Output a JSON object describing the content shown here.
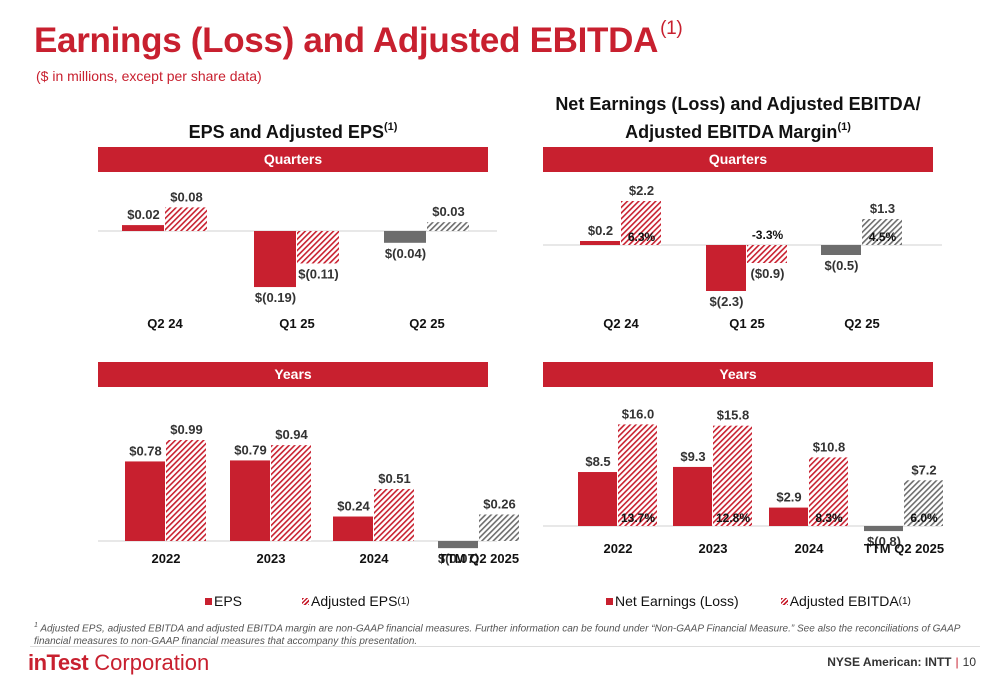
{
  "header": {
    "title": "Earnings (Loss) and Adjusted EBITDA",
    "title_note": "(1)",
    "subtitle": "($ in millions, except per share data)"
  },
  "left_panel": {
    "title": "EPS and Adjusted EPS",
    "title_note": "(1)",
    "band_quarters": "Quarters",
    "band_years": "Years",
    "legend": {
      "series1": "EPS",
      "series2": "Adjusted EPS",
      "series2_note": "(1)"
    }
  },
  "right_panel": {
    "title_line1": "Net Earnings (Loss) and Adjusted EBITDA/",
    "title_line2": "Adjusted EBITDA Margin",
    "title_note": "(1)",
    "band_quarters": "Quarters",
    "band_years": "Years",
    "legend": {
      "series1": "Net Earnings (Loss)",
      "series2": "Adjusted EBITDA",
      "series2_note": "(1)"
    }
  },
  "colors": {
    "primary": "#c8202f",
    "negative": "#6d6d6d"
  },
  "chart_data": [
    {
      "id": "eps_quarters",
      "type": "bar",
      "categories": [
        "Q2 24",
        "Q1 25",
        "Q2 25"
      ],
      "series": [
        {
          "name": "EPS",
          "values": [
            0.02,
            -0.19,
            -0.04
          ],
          "labels": [
            "$0.02",
            "$(0.19)",
            "$(0.04)"
          ]
        },
        {
          "name": "Adjusted EPS",
          "values": [
            0.08,
            -0.11,
            0.03
          ],
          "labels": [
            "$0.08",
            "$(0.11)",
            "$0.03"
          ]
        }
      ]
    },
    {
      "id": "ebitda_quarters",
      "type": "bar",
      "categories": [
        "Q2 24",
        "Q1 25",
        "Q2 25"
      ],
      "series": [
        {
          "name": "Net Earnings (Loss)",
          "values": [
            0.2,
            -2.3,
            -0.5
          ],
          "labels": [
            "$0.2",
            "$(2.3)",
            "$(0.5)"
          ]
        },
        {
          "name": "Adjusted EBITDA",
          "values": [
            2.2,
            -0.9,
            1.3
          ],
          "labels": [
            "$2.2",
            "($0.9)",
            "$1.3"
          ]
        }
      ],
      "margins": [
        "6.3%",
        "-3.3%",
        "4.5%"
      ]
    },
    {
      "id": "eps_years",
      "type": "bar",
      "categories": [
        "2022",
        "2023",
        "2024",
        "TTM Q2 2025"
      ],
      "series": [
        {
          "name": "EPS",
          "values": [
            0.78,
            0.79,
            0.24,
            -0.07
          ],
          "labels": [
            "$0.78",
            "$0.79",
            "$0.24",
            "$(0.07)"
          ]
        },
        {
          "name": "Adjusted EPS",
          "values": [
            0.99,
            0.94,
            0.51,
            0.26
          ],
          "labels": [
            "$0.99",
            "$0.94",
            "$0.51",
            "$0.26"
          ]
        }
      ]
    },
    {
      "id": "ebitda_years",
      "type": "bar",
      "categories": [
        "2022",
        "2023",
        "2024",
        "TTM Q2 2025"
      ],
      "series": [
        {
          "name": "Net Earnings (Loss)",
          "values": [
            8.5,
            9.3,
            2.9,
            -0.8
          ],
          "labels": [
            "$8.5",
            "$9.3",
            "$2.9",
            "$(0.8)"
          ]
        },
        {
          "name": "Adjusted EBITDA",
          "values": [
            16.0,
            15.8,
            10.8,
            7.2
          ],
          "labels": [
            "$16.0",
            "$15.8",
            "$10.8",
            "$7.2"
          ]
        }
      ],
      "margins": [
        "13.7%",
        "12.8%",
        "8.3%",
        "6.0%"
      ]
    }
  ],
  "footnote": {
    "marker": "1",
    "text": "Adjusted EPS, adjusted EBITDA and adjusted EBITDA margin are non-GAAP financial measures. Further information can be found under “Non-GAAP Financial Measure.” See also the reconciliations of GAAP financial measures to non-GAAP financial measures that accompany this presentation."
  },
  "footer": {
    "logo_bold": "inTest",
    "logo_rest": " Corporation",
    "exchange": "NYSE American: INTT",
    "page": "10"
  }
}
